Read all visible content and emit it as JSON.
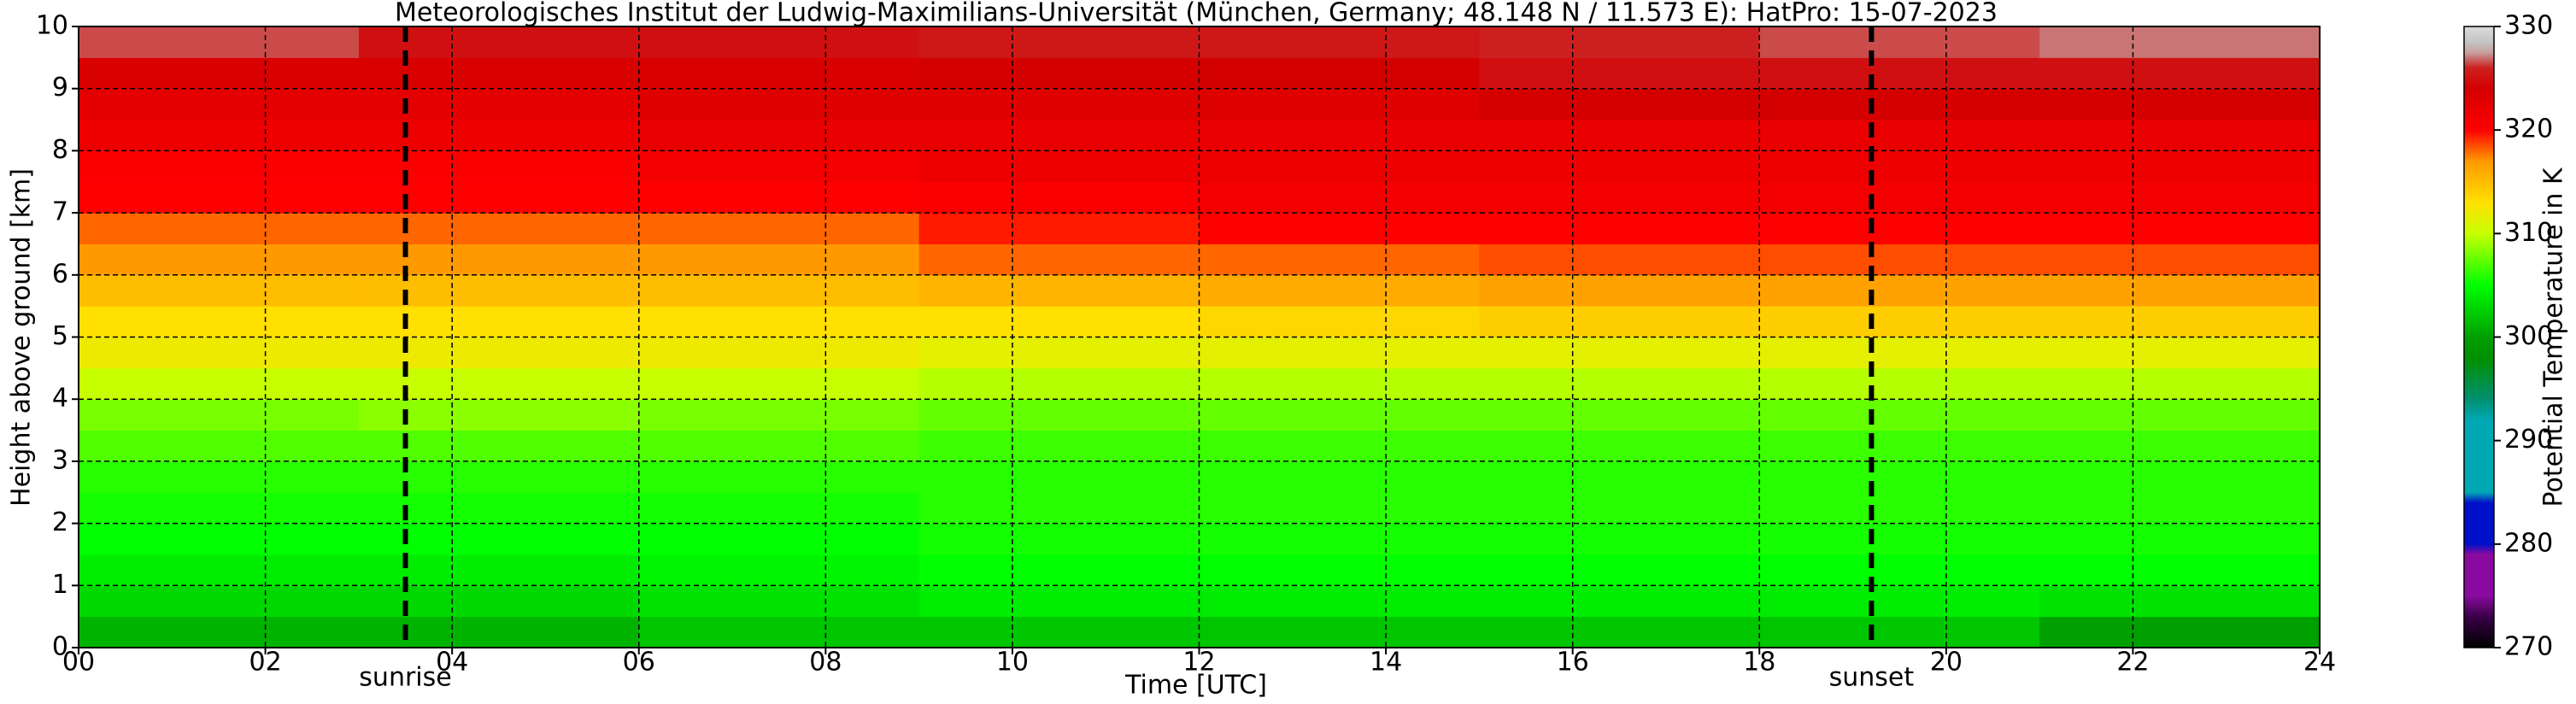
{
  "chart_data": {
    "type": "heatmap",
    "title": "Meteorologisches Institut der Ludwig-Maximilians-Universität (München, Germany; 48.148 N / 11.573 E):    HatPro: 15-07-2023",
    "xlabel": "Time [UTC]",
    "ylabel": "Height above ground [km]",
    "xlim": [
      0,
      24
    ],
    "xticks": [
      {
        "value": 0,
        "label": "00"
      },
      {
        "value": 2,
        "label": "02"
      },
      {
        "value": 4,
        "label": "04"
      },
      {
        "value": 6,
        "label": "06"
      },
      {
        "value": 8,
        "label": "08"
      },
      10,
      12,
      14,
      16,
      18,
      20,
      22,
      24
    ],
    "ylim": [
      0,
      10
    ],
    "yticks": [
      0,
      1,
      2,
      3,
      4,
      5,
      6,
      7,
      8,
      9,
      10
    ],
    "grid": true,
    "xbins": [
      0,
      3,
      6,
      9,
      12,
      15,
      18,
      21,
      24
    ],
    "ybins": [
      0,
      0.5,
      1,
      1.5,
      2,
      2.5,
      3,
      3.5,
      4,
      4.5,
      5,
      5.5,
      6,
      6.5,
      7,
      7.5,
      8,
      8.5,
      9,
      9.5,
      10
    ],
    "values": [
      [
        301,
        301,
        302,
        302,
        302,
        302,
        302,
        300
      ],
      [
        303,
        303,
        303.5,
        304,
        304,
        304,
        304,
        303.5
      ],
      [
        304,
        304,
        304.5,
        305,
        305,
        305,
        305,
        305
      ],
      [
        305,
        305,
        305,
        305.5,
        305.5,
        305.5,
        305.5,
        305.5
      ],
      [
        305.5,
        305.5,
        305.5,
        306,
        306,
        306,
        306,
        306
      ],
      [
        306,
        306,
        306,
        306,
        306,
        306,
        306,
        306
      ],
      [
        307,
        307,
        307,
        306.5,
        306.5,
        306.5,
        306.5,
        306.5
      ],
      [
        308,
        308.5,
        308,
        307.5,
        307.5,
        307.5,
        307.5,
        307.5
      ],
      [
        310,
        310,
        310,
        309.5,
        309.5,
        309.5,
        309.5,
        309.5
      ],
      [
        312,
        312,
        312,
        311.5,
        311.5,
        311.5,
        311.5,
        311.5
      ],
      [
        313,
        313,
        313,
        313,
        313.5,
        314,
        314,
        314
      ],
      [
        315,
        315,
        315,
        315.5,
        316,
        316.5,
        316.5,
        316.5
      ],
      [
        317,
        317,
        317,
        318,
        318,
        318.5,
        318.5,
        318.5
      ],
      [
        318,
        318,
        318,
        319.5,
        320,
        320,
        320,
        320
      ],
      [
        320,
        320,
        320,
        320.5,
        321,
        321,
        321,
        321
      ],
      [
        320.5,
        320.5,
        321,
        321.5,
        321.5,
        321.5,
        321.5,
        321.5
      ],
      [
        321.5,
        321.5,
        322,
        322,
        322,
        322,
        322,
        322
      ],
      [
        322.5,
        322.5,
        323,
        323,
        323,
        324,
        324,
        324
      ],
      [
        323.5,
        323.5,
        323.5,
        324,
        324,
        325,
        325,
        325
      ],
      [
        326.5,
        325,
        325,
        325.5,
        325.5,
        326,
        326.5,
        327
      ]
    ],
    "colormap": [
      [
        270,
        "#000000"
      ],
      [
        273,
        "#3a0048"
      ],
      [
        275,
        "#8a0aa0"
      ],
      [
        279,
        "#8a0aa0"
      ],
      [
        280,
        "#0010c8"
      ],
      [
        284,
        "#0010c8"
      ],
      [
        285,
        "#00a8b4"
      ],
      [
        292,
        "#00a8b4"
      ],
      [
        294,
        "#009070"
      ],
      [
        298,
        "#009000"
      ],
      [
        300,
        "#00a000"
      ],
      [
        305,
        "#00ff00"
      ],
      [
        310,
        "#c8ff00"
      ],
      [
        313,
        "#ffe000"
      ],
      [
        317,
        "#ff9900"
      ],
      [
        320,
        "#ff0000"
      ],
      [
        324,
        "#d40000"
      ],
      [
        326,
        "#cc2020"
      ],
      [
        327.5,
        "#c8a0a0"
      ],
      [
        328.5,
        "#c4c4c4"
      ],
      [
        330,
        "#dcdcdc"
      ]
    ],
    "clim": [
      270,
      330
    ],
    "cticks": [
      270,
      280,
      290,
      300,
      310,
      320,
      330
    ],
    "colorbar_label": "Potential Temperature in K",
    "annotations": [
      {
        "text": "sunrise",
        "x": 3.5
      },
      {
        "text": "sunset",
        "x": 19.2
      }
    ]
  }
}
